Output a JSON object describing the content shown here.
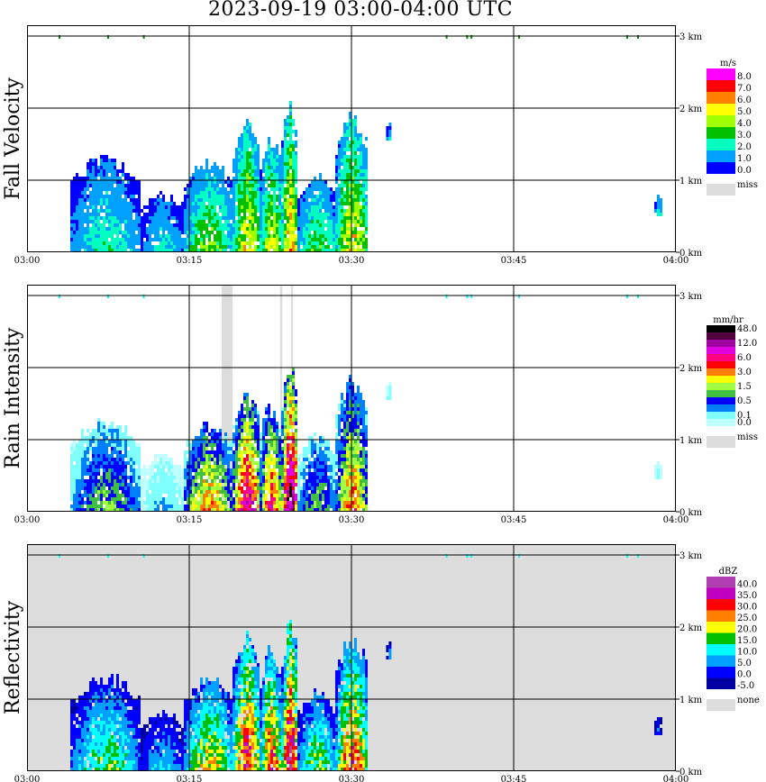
{
  "title": "2023-09-19  03:00-04:00 UTC",
  "colors": {
    "background": "#ffffff",
    "grid": "#000000",
    "missing": "#dddddd",
    "lowest_height_marker_vel": "#0a8a0a",
    "lowest_height_marker_rain": "#00ffff"
  },
  "chart_data": [
    {
      "type": "heatmap",
      "name": "fall-velocity",
      "ylabel": "Fall Velocity",
      "x_ticks": [
        "03:00",
        "03:15",
        "03:30",
        "03:45",
        "04:00"
      ],
      "y_ticks": [
        "0 km",
        "1 km",
        "2 km",
        "3 km"
      ],
      "xlim_minutes": [
        0,
        60
      ],
      "ylim_km": [
        0,
        3.0
      ],
      "grid": true,
      "colorbar": {
        "unit": "m/s",
        "labels": [
          "8.0",
          "7.0",
          "6.0",
          "5.0",
          "4.0",
          "3.0",
          "2.0",
          "1.0",
          "0.0"
        ],
        "colors": [
          "#ff00ff",
          "#ff0000",
          "#ff8000",
          "#ffff00",
          "#a0ff00",
          "#00c000",
          "#00ffc0",
          "#00a0ff",
          "#0000ff"
        ],
        "missing_label": "miss",
        "missing_color": "#dddddd"
      },
      "background_fill": "#ffffff",
      "missing_bands": [],
      "echoes": [
        {
          "t0": 4.0,
          "t1": 10.5,
          "top_km": 1.35,
          "level": 0.3
        },
        {
          "t0": 10.5,
          "t1": 14.5,
          "top_km": 0.85,
          "level": 0.25
        },
        {
          "t0": 14.5,
          "t1": 19.0,
          "top_km": 1.3,
          "level": 0.45
        },
        {
          "t0": 19.0,
          "t1": 21.5,
          "top_km": 1.95,
          "level": 0.6
        },
        {
          "t0": 21.5,
          "t1": 23.5,
          "top_km": 1.65,
          "level": 0.55
        },
        {
          "t0": 23.5,
          "t1": 25.0,
          "top_km": 2.1,
          "level": 0.7
        },
        {
          "t0": 25.0,
          "t1": 28.5,
          "top_km": 1.1,
          "level": 0.4
        },
        {
          "t0": 28.5,
          "t1": 31.5,
          "top_km": 1.95,
          "level": 0.6
        },
        {
          "t0": 33.2,
          "t1": 33.6,
          "top_km": 1.8,
          "level": 0.25,
          "bottom_km": 1.55
        },
        {
          "t0": 58.0,
          "t1": 58.6,
          "top_km": 0.8,
          "level": 0.3,
          "bottom_km": 0.5
        }
      ],
      "top_markers_minutes": [
        3.0,
        7.5,
        10.8,
        38.8,
        40.7,
        41.1,
        45.5,
        55.5,
        56.5
      ]
    },
    {
      "type": "heatmap",
      "name": "rain-intensity",
      "ylabel": "Rain Intensity",
      "x_ticks": [
        "03:00",
        "03:15",
        "03:30",
        "03:45",
        "04:00"
      ],
      "y_ticks": [
        "0 km",
        "1 km",
        "2 km",
        "3 km"
      ],
      "xlim_minutes": [
        0,
        60
      ],
      "ylim_km": [
        0,
        3.0
      ],
      "grid": true,
      "colorbar": {
        "unit": "mm/hr",
        "labels": [
          "48.0",
          "",
          "12.0",
          "",
          "6.0",
          "",
          "3.0",
          "",
          "1.5",
          "",
          "0.5",
          "",
          "0.1",
          "0.0"
        ],
        "colors": [
          "#000000",
          "#500040",
          "#a000a0",
          "#e000e0",
          "#ff0080",
          "#ff0000",
          "#ff8000",
          "#ffff00",
          "#a0ff40",
          "#40c040",
          "#0000ff",
          "#0080ff",
          "#80ffff",
          "#c0ffff"
        ],
        "missing_label": "miss",
        "missing_color": "#dddddd"
      },
      "background_fill": "#ffffff",
      "missing_bands": [
        {
          "t0": 18.0,
          "t1": 19.0
        },
        {
          "t0": 23.4,
          "t1": 23.6
        },
        {
          "t0": 24.4,
          "t1": 24.6
        }
      ],
      "echoes": [
        {
          "t0": 4.0,
          "t1": 10.5,
          "top_km": 1.3,
          "level": 0.35
        },
        {
          "t0": 10.5,
          "t1": 14.5,
          "top_km": 0.8,
          "level": 0.15
        },
        {
          "t0": 14.5,
          "t1": 19.0,
          "top_km": 1.25,
          "level": 0.55
        },
        {
          "t0": 19.0,
          "t1": 21.5,
          "top_km": 1.7,
          "level": 0.75
        },
        {
          "t0": 21.5,
          "t1": 23.5,
          "top_km": 1.55,
          "level": 0.65
        },
        {
          "t0": 23.5,
          "t1": 25.0,
          "top_km": 2.1,
          "level": 0.9
        },
        {
          "t0": 25.0,
          "t1": 28.5,
          "top_km": 1.1,
          "level": 0.35
        },
        {
          "t0": 28.5,
          "t1": 31.5,
          "top_km": 1.9,
          "level": 0.55
        },
        {
          "t0": 33.2,
          "t1": 33.6,
          "top_km": 1.8,
          "level": 0.15,
          "bottom_km": 1.55
        },
        {
          "t0": 58.0,
          "t1": 58.6,
          "top_km": 0.7,
          "level": 0.1,
          "bottom_km": 0.45
        }
      ],
      "top_markers_minutes": [
        3.0,
        7.5,
        10.8,
        38.8,
        40.7,
        41.1,
        45.5,
        55.5,
        56.5
      ]
    },
    {
      "type": "heatmap",
      "name": "reflectivity",
      "ylabel": "Reflectivity",
      "x_ticks": [
        "03:00",
        "03:15",
        "03:30",
        "03:45",
        "04:00"
      ],
      "y_ticks": [
        "0 km",
        "1 km",
        "2 km",
        "3 km"
      ],
      "xlim_minutes": [
        0,
        60
      ],
      "ylim_km": [
        0,
        3.0
      ],
      "grid": true,
      "colorbar": {
        "unit": "dBZ",
        "labels": [
          "40.0",
          "35.0",
          "30.0",
          "25.0",
          "20.0",
          "15.0",
          "10.0",
          "5.0",
          "0.0",
          "-5.0"
        ],
        "colors": [
          "#b040b0",
          "#c000c0",
          "#ff0000",
          "#ff8000",
          "#ffff00",
          "#00c000",
          "#00ffff",
          "#00a0ff",
          "#0000ff",
          "#0000a0"
        ],
        "missing_label": "none",
        "missing_color": "#dddddd"
      },
      "background_fill": "#dddddd",
      "missing_bands": [],
      "echoes": [
        {
          "t0": 4.0,
          "t1": 10.5,
          "top_km": 1.35,
          "level": 0.45
        },
        {
          "t0": 10.5,
          "t1": 14.5,
          "top_km": 0.85,
          "level": 0.3
        },
        {
          "t0": 14.5,
          "t1": 19.0,
          "top_km": 1.35,
          "level": 0.6
        },
        {
          "t0": 19.0,
          "t1": 21.5,
          "top_km": 1.95,
          "level": 0.8
        },
        {
          "t0": 21.5,
          "t1": 23.5,
          "top_km": 1.75,
          "level": 0.75
        },
        {
          "t0": 23.5,
          "t1": 25.0,
          "top_km": 2.1,
          "level": 0.92
        },
        {
          "t0": 25.0,
          "t1": 28.5,
          "top_km": 1.15,
          "level": 0.5
        },
        {
          "t0": 28.5,
          "t1": 31.5,
          "top_km": 1.95,
          "level": 0.75
        },
        {
          "t0": 33.2,
          "t1": 33.6,
          "top_km": 1.8,
          "level": 0.25,
          "bottom_km": 1.55
        },
        {
          "t0": 58.0,
          "t1": 58.6,
          "top_km": 0.75,
          "level": 0.2,
          "bottom_km": 0.5
        }
      ],
      "top_markers_minutes": [
        3.0,
        7.5,
        10.8,
        38.8,
        40.7,
        41.1,
        45.5,
        55.5,
        56.5
      ]
    }
  ]
}
